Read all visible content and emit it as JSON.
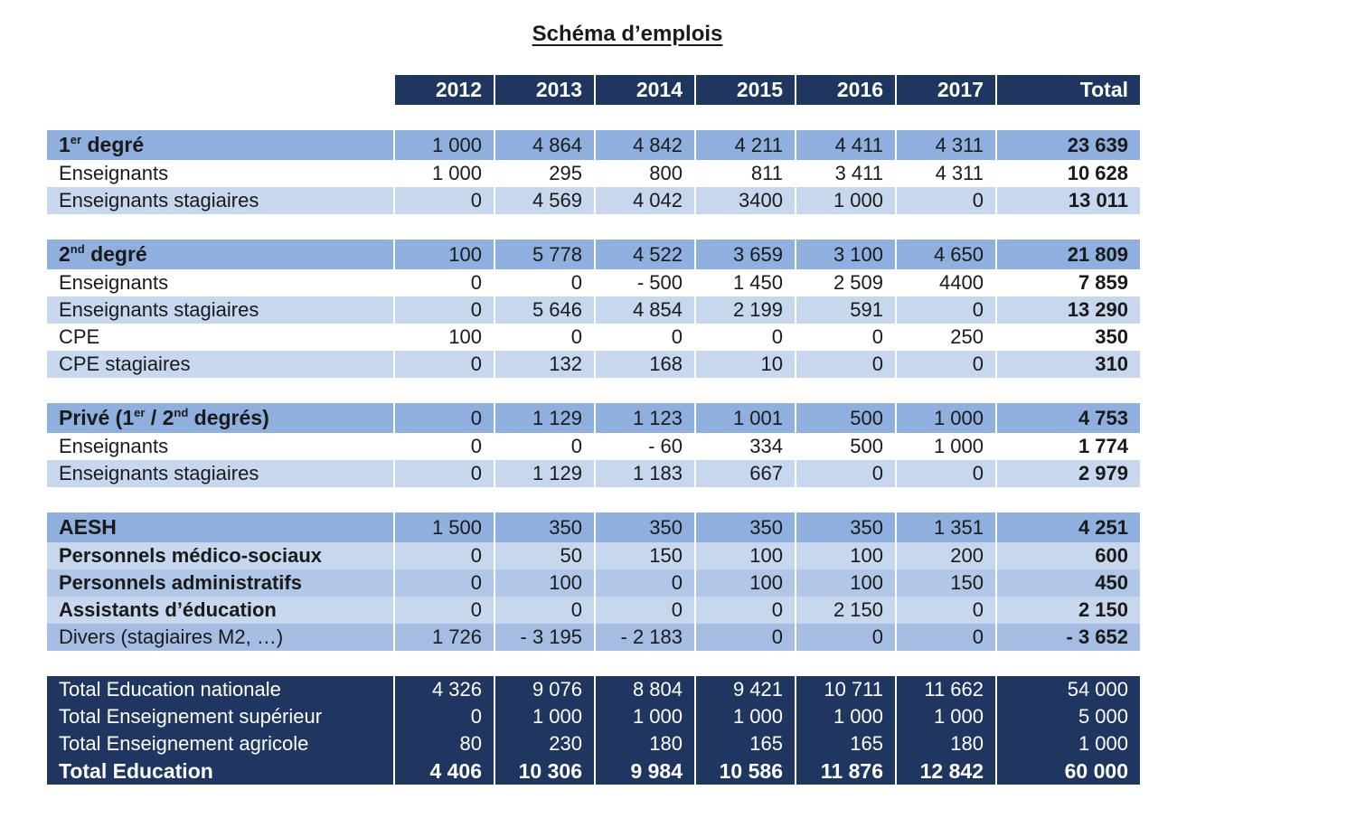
{
  "title": "Schéma d’emplois",
  "headers": [
    "2012",
    "2013",
    "2014",
    "2015",
    "2016",
    "2017",
    "Total"
  ],
  "degre1": {
    "label_pre": "1",
    "label_sup": "er",
    "label_post": " degré",
    "values": [
      "1 000",
      "4 864",
      "4 842",
      "4 211",
      "4 411",
      "4 311"
    ],
    "total": "23 639",
    "rows": [
      {
        "label": "Enseignants",
        "values": [
          "1 000",
          "295",
          "800",
          "811",
          "3 411",
          "4 311"
        ],
        "total": "10 628"
      },
      {
        "label": "Enseignants stagiaires",
        "values": [
          "0",
          "4 569",
          "4 042",
          "3400",
          "1 000",
          "0"
        ],
        "total": "13 011"
      }
    ]
  },
  "degre2": {
    "label_pre": "2",
    "label_sup": "nd",
    "label_post": " degré",
    "values": [
      "100",
      "5 778",
      "4 522",
      "3 659",
      "3 100",
      "4 650"
    ],
    "total": "21 809",
    "rows": [
      {
        "label": "Enseignants",
        "values": [
          "0",
          "0",
          "- 500",
          "1 450",
          "2 509",
          "4400"
        ],
        "total": "7 859"
      },
      {
        "label": "Enseignants stagiaires",
        "values": [
          "0",
          "5 646",
          "4 854",
          "2 199",
          "591",
          "0"
        ],
        "total": "13 290"
      },
      {
        "label": "CPE",
        "values": [
          "100",
          "0",
          "0",
          "0",
          "0",
          "250"
        ],
        "total": "350"
      },
      {
        "label": "CPE stagiaires",
        "values": [
          "0",
          "132",
          "168",
          "10",
          "0",
          "0"
        ],
        "total": "310"
      }
    ]
  },
  "prive": {
    "label_a": "Privé (1",
    "sup1": "er",
    "label_b": " / 2",
    "sup2": "nd",
    "label_c": " degrés)",
    "values": [
      "0",
      "1 129",
      "1 123",
      "1 001",
      "500",
      "1 000"
    ],
    "total": "4 753",
    "rows": [
      {
        "label": "Enseignants",
        "values": [
          "0",
          "0",
          "- 60",
          "334",
          "500",
          "1 000"
        ],
        "total": "1 774"
      },
      {
        "label": "Enseignants stagiaires",
        "values": [
          "0",
          "1 129",
          "1 183",
          "667",
          "0",
          "0"
        ],
        "total": "2 979"
      }
    ]
  },
  "autres": [
    {
      "label": "AESH",
      "values": [
        "1 500",
        "350",
        "350",
        "350",
        "350",
        "1 351"
      ],
      "total": "4 251"
    },
    {
      "label": "Personnels médico-sociaux",
      "values": [
        "0",
        "50",
        "150",
        "100",
        "100",
        "200"
      ],
      "total": "600"
    },
    {
      "label": "Personnels administratifs",
      "values": [
        "0",
        "100",
        "0",
        "100",
        "100",
        "150"
      ],
      "total": "450"
    },
    {
      "label": "Assistants d’éducation",
      "values": [
        "0",
        "0",
        "0",
        "0",
        "2 150",
        "0"
      ],
      "total": "2 150"
    },
    {
      "label": "Divers",
      "label_suffix": " (stagiaires M2, …)",
      "values": [
        "1 726",
        "- 3 195",
        "- 2 183",
        "0",
        "0",
        "0"
      ],
      "total": "- 3 652"
    }
  ],
  "totaux": [
    {
      "label": "Total Education nationale",
      "values": [
        "4 326",
        "9 076",
        "8 804",
        "9 421",
        "10 711",
        "11 662"
      ],
      "total": "54 000"
    },
    {
      "label": "Total Enseignement supérieur",
      "values": [
        "0",
        "1 000",
        "1 000",
        "1 000",
        "1 000",
        "1 000"
      ],
      "total": "5 000"
    },
    {
      "label": "Total Enseignement agricole",
      "values": [
        "80",
        "230",
        "180",
        "165",
        "165",
        "180"
      ],
      "total": "1 000"
    },
    {
      "label": "Total Education",
      "values": [
        "4 406",
        "10 306",
        "9 984",
        "10 586",
        "11 876",
        "12 842"
      ],
      "total": "60 000"
    }
  ],
  "colors": {
    "header_navy": "#1e3660",
    "group_blue": "#8fb0df",
    "light_blue": "#c7d8ee",
    "white": "#ffffff"
  }
}
